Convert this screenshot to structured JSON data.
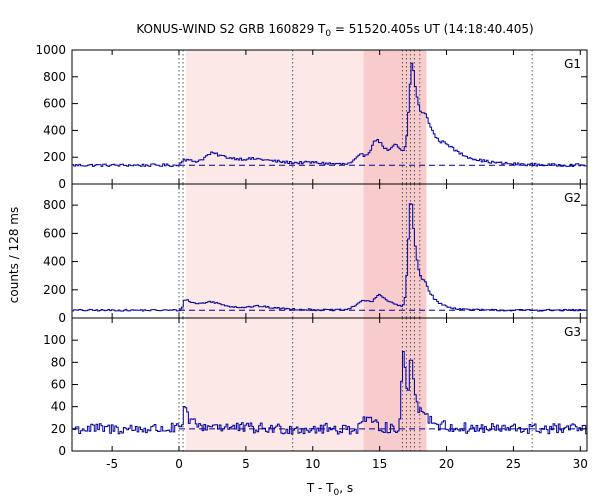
{
  "chart_data": {
    "type": "line",
    "title_text": "KONUS-WIND S2 GRB 160829 T",
    "title_sub": "0",
    "title_rest": " = 51520.405s UT (14:18:40.405)",
    "xlabel_text": "T - T",
    "xlabel_sub": "0",
    "xlabel_rest": ", s",
    "ylabel": "counts / 128 ms",
    "xlim": [
      -8,
      30.5
    ],
    "xticks": [
      -5,
      0,
      5,
      10,
      15,
      20,
      25,
      30
    ],
    "colors": {
      "line": "#0000a0",
      "background_dash": "#000090",
      "span_light": "#fde8e8",
      "span_dark": "#f8cccc",
      "vline": "#555555"
    },
    "shaded_regions": [
      {
        "start": 0.5,
        "end": 18.5,
        "shade": "light"
      },
      {
        "start": 13.8,
        "end": 18.5,
        "shade": "dark"
      }
    ],
    "vertical_markers": [
      0.0,
      0.3,
      8.5,
      16.7,
      17.0,
      17.3,
      17.6,
      18.0,
      26.4
    ],
    "panels": [
      {
        "name": "G1",
        "ylim": [
          0,
          1000
        ],
        "yticks": [
          0,
          200,
          400,
          600,
          800,
          1000
        ],
        "background_level": 140,
        "profile": {
          "base": 140,
          "pre_start": -8,
          "pre_end": 0,
          "noise": 10,
          "comps": [
            [
              0.3,
              0.3,
              1.5,
              45
            ],
            [
              2.5,
              0.8,
              2.5,
              80
            ],
            [
              6,
              1.5,
              3,
              25
            ],
            [
              10,
              1,
              2,
              10
            ],
            [
              13.6,
              0.6,
              1.5,
              70
            ],
            [
              14.8,
              0.6,
              1.2,
              160
            ],
            [
              16.2,
              0.4,
              0.8,
              90
            ],
            [
              17.4,
              0.35,
              0.7,
              730
            ],
            [
              18.5,
              0.5,
              2,
              190
            ],
            [
              20,
              0.5,
              1.5,
              50
            ]
          ]
        }
      },
      {
        "name": "G2",
        "ylim": [
          0,
          950
        ],
        "yticks": [
          0,
          200,
          400,
          600,
          800
        ],
        "background_level": 55,
        "profile": {
          "base": 55,
          "pre_start": -8,
          "pre_end": 0,
          "noise": 6,
          "comps": [
            [
              0.4,
              0.2,
              1.2,
              80
            ],
            [
              2.5,
              1,
              2,
              45
            ],
            [
              6,
              1,
              2,
              20
            ],
            [
              13.8,
              0.8,
              1.5,
              70
            ],
            [
              15,
              0.5,
              1,
              80
            ],
            [
              17.3,
              0.3,
              0.5,
              800
            ],
            [
              18.4,
              0.4,
              1,
              100
            ]
          ]
        }
      },
      {
        "name": "G3",
        "ylim": [
          0,
          120
        ],
        "yticks": [
          0,
          20,
          40,
          60,
          80,
          100
        ],
        "background_level": 20,
        "profile": {
          "base": 20,
          "pre_start": -8,
          "pre_end": 0,
          "noise": 5,
          "comps": [
            [
              0.3,
              0.1,
              0.6,
              18
            ],
            [
              2.5,
              0.5,
              1.5,
              3
            ],
            [
              13.8,
              0.3,
              0.8,
              10
            ],
            [
              16.7,
              0.15,
              0.35,
              75
            ],
            [
              17.3,
              0.15,
              0.4,
              60
            ],
            [
              18.3,
              0.3,
              1,
              10
            ]
          ]
        }
      }
    ]
  }
}
